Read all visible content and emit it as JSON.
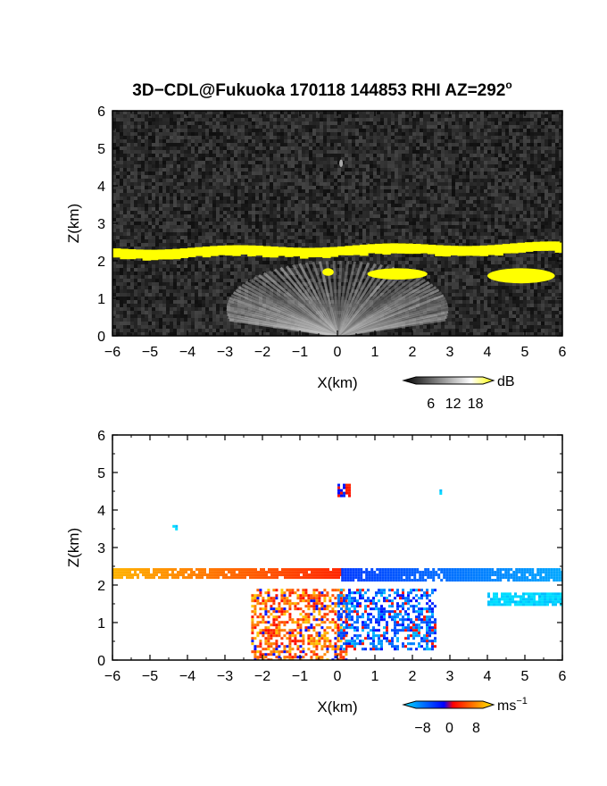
{
  "figure": {
    "title": "3D−CDL@Fukuoka 170118 144853 RHI AZ=292",
    "title_degree": "o"
  },
  "chart_data": [
    {
      "type": "heatmap",
      "quantity": "reflectivity/SNR",
      "xlabel": "X(km)",
      "ylabel": "Z(km)",
      "xlim": [
        -6,
        6
      ],
      "ylim": [
        0,
        6
      ],
      "xticks": [
        -6,
        -5,
        -4,
        -3,
        -2,
        -1,
        0,
        1,
        2,
        3,
        4,
        5,
        6
      ],
      "yticks": [
        0,
        1,
        2,
        3,
        4,
        5,
        6
      ],
      "colorbar": {
        "unit": "dB",
        "ticks": [
          6,
          12,
          18
        ],
        "colors": [
          "#000000",
          "#ffffff",
          "#ffff00"
        ]
      },
      "features": [
        {
          "name": "cloud-layer",
          "x": [
            -6,
            6
          ],
          "z": [
            2.15,
            2.45
          ],
          "value_db": 18
        },
        {
          "name": "low-cloud-a",
          "x": [
            -0.4,
            -0.1
          ],
          "z": [
            1.6,
            1.8
          ],
          "value_db": 18
        },
        {
          "name": "low-cloud-b",
          "x": [
            0.8,
            2.4
          ],
          "z": [
            1.5,
            1.8
          ],
          "value_db": 18
        },
        {
          "name": "low-cloud-c",
          "x": [
            4.0,
            5.8
          ],
          "z": [
            1.4,
            1.8
          ],
          "value_db": 18
        },
        {
          "name": "boundary-layer-fan",
          "x": [
            -2.5,
            2.5
          ],
          "z": [
            0,
            2.0
          ],
          "value_db": 10
        },
        {
          "name": "isolated-echo",
          "x": [
            0.05,
            0.05
          ],
          "z": [
            4.5,
            4.7
          ],
          "value_db": 10
        }
      ]
    },
    {
      "type": "heatmap",
      "quantity": "doppler-velocity",
      "xlabel": "X(km)",
      "ylabel": "Z(km)",
      "xlim": [
        -6,
        6
      ],
      "ylim": [
        0,
        6
      ],
      "xticks": [
        -6,
        -5,
        -4,
        -3,
        -2,
        -1,
        0,
        1,
        2,
        3,
        4,
        5,
        6
      ],
      "yticks": [
        0,
        1,
        2,
        3,
        4,
        5,
        6
      ],
      "colorbar": {
        "unit": "ms",
        "unit_exp": "−1",
        "ticks": [
          -8,
          0,
          8
        ],
        "colors": [
          "#00e0ff",
          "#0000ff",
          "#ff0000",
          "#ffee00"
        ]
      },
      "features": [
        {
          "name": "cloud-layer-approaching",
          "x": [
            -6,
            0.1
          ],
          "z": [
            2.2,
            2.45
          ],
          "velocity": 6
        },
        {
          "name": "cloud-layer-receding",
          "x": [
            0.1,
            6
          ],
          "z": [
            2.15,
            2.45
          ],
          "velocity": -6
        },
        {
          "name": "low-cloud-east",
          "x": [
            4.0,
            6
          ],
          "z": [
            1.45,
            1.8
          ],
          "velocity": -8
        },
        {
          "name": "boundary-layer-west",
          "x": [
            -2.3,
            0.2
          ],
          "z": [
            0,
            1.9
          ],
          "velocity": 3
        },
        {
          "name": "boundary-layer-east",
          "x": [
            0.0,
            2.6
          ],
          "z": [
            0.3,
            1.9
          ],
          "velocity": -3
        },
        {
          "name": "isolated-echo",
          "x": [
            0.0,
            0.3
          ],
          "z": [
            4.4,
            4.7
          ],
          "velocity": 0
        },
        {
          "name": "speck-a",
          "x": [
            -4.4,
            -4.4
          ],
          "z": [
            3.6,
            3.6
          ],
          "velocity": -8
        },
        {
          "name": "speck-b",
          "x": [
            2.65,
            2.65
          ],
          "z": [
            4.55,
            4.55
          ],
          "velocity": -8
        }
      ]
    }
  ]
}
